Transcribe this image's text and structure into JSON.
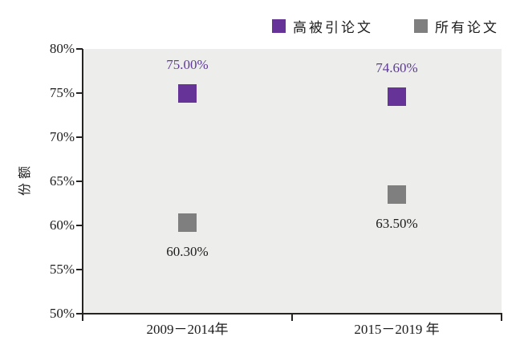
{
  "chart_data": {
    "type": "scatter",
    "title": "",
    "xlabel": "",
    "ylabel": "份额",
    "ylim": [
      50,
      80
    ],
    "ytick_step": 5,
    "ytick_suffix": "%",
    "ytick_labels": [
      "80%",
      "75%",
      "70%",
      "65%",
      "60%",
      "55%",
      "50%"
    ],
    "grid": false,
    "legend_position": "top-right",
    "plot_bg": "#edeeec",
    "axis_color": "#272323",
    "categories": [
      "2009－2014年",
      "2015－2019 年"
    ],
    "series": [
      {
        "name": "高被引论文",
        "values": [
          75.0,
          74.6
        ],
        "labels": [
          "75.00%",
          "74.60%"
        ],
        "color": "#663399",
        "label_color": "#5e3a96",
        "label_position": "above",
        "marker": "square"
      },
      {
        "name": "所有论文",
        "values": [
          60.3,
          63.5
        ],
        "labels": [
          "60.30%",
          "63.50%"
        ],
        "color": "#7f7f7f",
        "label_color": "#1c1c1c",
        "label_position": "below",
        "marker": "square"
      }
    ]
  }
}
